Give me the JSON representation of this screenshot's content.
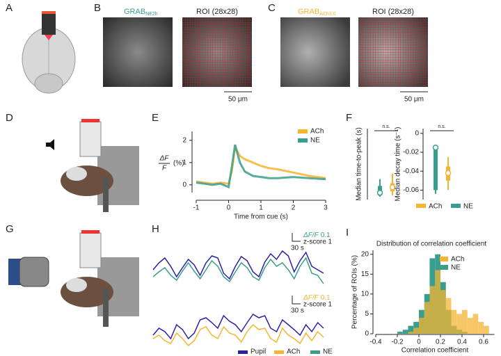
{
  "panel_labels": [
    "A",
    "B",
    "C",
    "D",
    "E",
    "F",
    "G",
    "H",
    "I"
  ],
  "panel_b": {
    "title_main": "GRAB",
    "title_sub": "NE2h",
    "roi_title": "ROI (28x28)",
    "scale_bar": "50 μm"
  },
  "panel_c": {
    "title_main": "GRAB",
    "title_sub": "ACh3.0",
    "roi_title": "ROI (28x28)",
    "scale_bar": "50 μm"
  },
  "chart_data": [
    {
      "type": "line",
      "ylabel": {
        "numerator": "ΔF",
        "denominator": "F",
        "unit": "(%)"
      },
      "xlabel": "Time from cue (s)",
      "x": [
        -1,
        -0.75,
        -0.5,
        -0.25,
        0,
        0.1,
        0.2,
        0.35,
        0.5,
        0.75,
        1,
        1.25,
        1.5,
        2,
        2.5,
        3
      ],
      "series": [
        {
          "name": "ACh",
          "color": "#f5b431",
          "values": [
            0.15,
            0.1,
            0.05,
            0.1,
            0.05,
            0.6,
            1.7,
            1.3,
            1.15,
            1.0,
            0.85,
            0.75,
            0.7,
            0.55,
            0.4,
            0.3
          ]
        },
        {
          "name": "NE",
          "color": "#3a9e8f",
          "values": [
            0.1,
            0.05,
            0.0,
            0.05,
            -0.1,
            0.8,
            1.8,
            1.0,
            0.6,
            0.4,
            0.35,
            0.3,
            0.3,
            0.35,
            0.3,
            0.25
          ]
        }
      ],
      "xlim": [
        -1,
        3
      ],
      "xticks": [
        -1,
        0,
        1,
        2,
        3
      ],
      "ylim": [
        -0.35,
        2.4
      ],
      "yticks": [
        0,
        1,
        2
      ]
    },
    {
      "type": "box",
      "series": [
        {
          "name": "ACh",
          "color": "#f5b431"
        },
        {
          "name": "NE",
          "color": "#3a9e8f"
        }
      ],
      "panels": [
        {
          "ylabel": "Median time-to-peak (s)",
          "annotation": "n.s.",
          "ylim": [
            0,
            2.6
          ],
          "boxes": [
            {
              "whisker_low": 0.15,
              "q1": 0.3,
              "median": 0.45,
              "q3": 0.6,
              "whisker_high": 0.95
            },
            {
              "whisker_low": 0.1,
              "q1": 0.15,
              "median": 0.25,
              "q3": 0.5,
              "whisker_high": 0.75
            }
          ]
        },
        {
          "ylabel": "Median decay time (s⁻¹)",
          "annotation": "n.s.",
          "ylim": [
            -0.07,
            0.005
          ],
          "yticks": [
            0,
            -0.02,
            -0.04,
            -0.06
          ],
          "boxes": [
            {
              "whisker_low": -0.06,
              "q1": -0.05,
              "median": -0.042,
              "q3": -0.035,
              "whisker_high": -0.025
            },
            {
              "whisker_low": -0.064,
              "q1": -0.06,
              "median": -0.015,
              "q3": -0.013,
              "whisker_high": -0.012
            }
          ]
        }
      ]
    },
    {
      "type": "trace",
      "top_scale": {
        "dff": "ΔF/F",
        "dff_value": "0.1",
        "z": "z-score 1",
        "time": "30 s"
      },
      "bottom_scale": {
        "dff": "ΔF/F",
        "dff_value": "0.1",
        "z": "z-score 1",
        "time": "30 s"
      },
      "top_series": [
        {
          "name": "Pupil",
          "color": "#2b1fa3",
          "values": [
            0.5,
            1.5,
            2.2,
            1.0,
            -0.5,
            0.8,
            2.0,
            1.2,
            -0.3,
            1.5,
            2.5,
            2.2,
            0.0,
            -0.8,
            1.0,
            2.4,
            1.8,
            0.2,
            -0.5,
            1.6,
            2.8,
            2.0,
            3.2,
            2.5,
            0.2,
            1.8,
            3.0,
            1.0,
            0.5,
            0.0
          ]
        },
        {
          "name": "NE",
          "color": "#3a9e8f",
          "values": [
            -0.5,
            0.2,
            0.8,
            -0.3,
            -1.0,
            0.3,
            1.5,
            0.3,
            -0.8,
            0.5,
            1.8,
            1.0,
            -0.5,
            -1.2,
            0.2,
            1.5,
            0.8,
            -0.5,
            -1.0,
            0.8,
            2.0,
            1.0,
            1.5,
            0.5,
            -0.8,
            1.0,
            2.2,
            0.0,
            -0.3,
            -1.5
          ]
        }
      ],
      "bottom_series": [
        {
          "name": "Pupil",
          "color": "#2b1fa3",
          "values": [
            0.0,
            1.0,
            0.5,
            -0.5,
            1.5,
            0.8,
            -0.5,
            0.3,
            2.2,
            2.5,
            1.8,
            1.0,
            2.8,
            2.0,
            1.5,
            0.5,
            1.8,
            3.0,
            2.5,
            2.8,
            1.0,
            0.5,
            2.2,
            1.5,
            0.8,
            0.0,
            1.5,
            0.5,
            1.8,
            1.0
          ]
        },
        {
          "name": "ACh",
          "color": "#f5b431",
          "values": [
            -0.5,
            0.0,
            -0.8,
            -1.2,
            0.3,
            -0.5,
            -1.5,
            -0.8,
            0.8,
            1.2,
            0.0,
            -0.5,
            1.2,
            0.3,
            0.0,
            -1.0,
            0.5,
            1.5,
            0.8,
            1.0,
            -0.5,
            -1.0,
            1.0,
            0.0,
            -0.5,
            -1.2,
            0.3,
            -0.8,
            0.5,
            -0.3
          ]
        }
      ],
      "legend": [
        "Pupil",
        "ACh",
        "NE"
      ]
    },
    {
      "type": "histogram",
      "title": "Distribution of correlation coefficient",
      "xlabel": "Correlation coefficient",
      "ylabel": "Percentage of ROIs (%)",
      "bins": [
        -0.2,
        -0.15,
        -0.1,
        -0.05,
        0,
        0.05,
        0.1,
        0.15,
        0.2,
        0.25,
        0.3,
        0.35,
        0.4,
        0.45,
        0.5,
        0.55,
        0.6,
        0.65,
        0.7
      ],
      "series": [
        {
          "name": "ACh",
          "color": "#f5b431",
          "values": [
            0,
            0,
            0.5,
            1.5,
            4,
            8,
            12,
            16,
            11,
            9,
            6,
            5,
            6,
            4,
            5,
            3,
            2,
            0
          ]
        },
        {
          "name": "NE",
          "color": "#3a9e8f",
          "values": [
            0.5,
            1,
            2,
            3,
            6,
            10,
            19,
            20,
            13,
            6,
            2,
            1,
            0.5,
            0,
            0,
            0,
            0,
            0
          ]
        }
      ],
      "xlim": [
        -0.4,
        0.7
      ],
      "xticks": [
        -0.4,
        -0.2,
        0,
        0.2,
        0.4,
        0.6
      ],
      "ylim": [
        0,
        21
      ],
      "yticks": [
        0,
        5,
        10,
        15,
        20
      ]
    }
  ]
}
